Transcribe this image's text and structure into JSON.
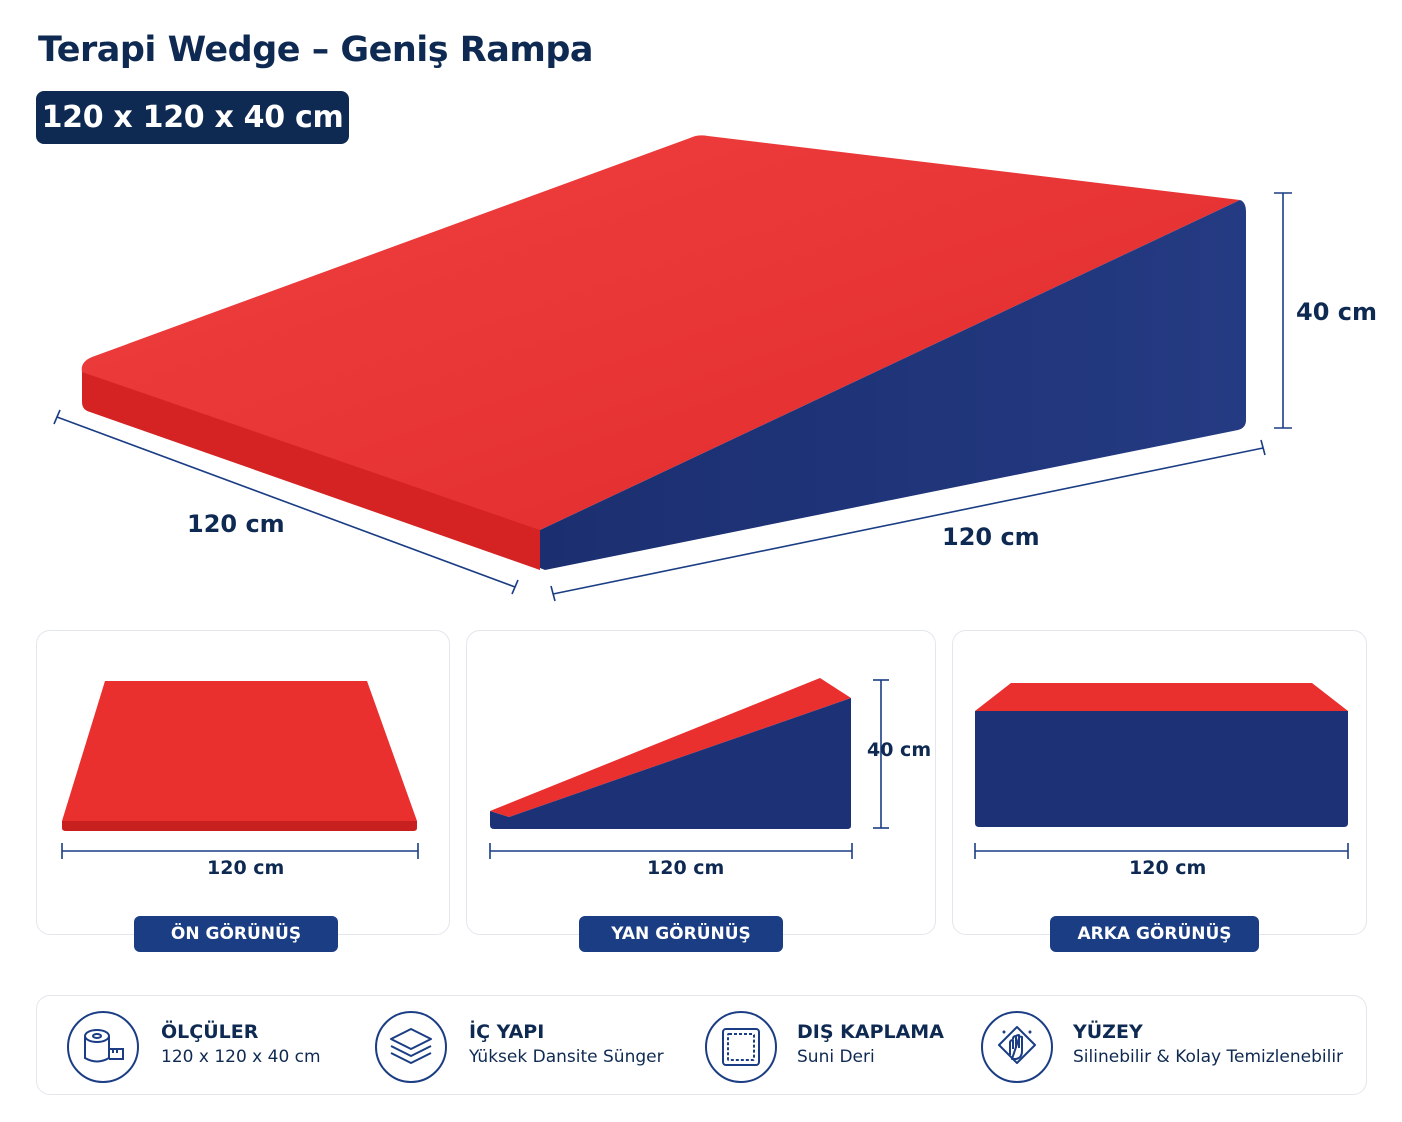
{
  "header": {
    "title": "Terapi Wedge – Geniş Rampa",
    "dimensions_badge": "120 x 120 x 40 cm"
  },
  "main_product": {
    "width_label": "120 cm",
    "length_label": "120 cm",
    "height_label": "40 cm",
    "colors": {
      "top": "#ea2f2f",
      "side": "#1d3276"
    }
  },
  "views": [
    {
      "label": "ÖN GÖRÜNÜŞ",
      "width_label": "120 cm"
    },
    {
      "label": "YAN GÖRÜNÜŞ",
      "width_label": "120 cm",
      "height_label": "40 cm"
    },
    {
      "label": "ARKA GÖRÜNÜŞ",
      "width_label": "120 cm"
    }
  ],
  "features": [
    {
      "icon": "measuring-tape-icon",
      "title": "ÖLÇÜLER",
      "text": "120 x 120 x 40 cm"
    },
    {
      "icon": "layers-icon",
      "title": "İÇ YAPI",
      "text": "Yüksek Dansite Sünger"
    },
    {
      "icon": "fabric-icon",
      "title": "DIŞ KAPLAMA",
      "text": "Suni Deri"
    },
    {
      "icon": "cleaning-hand-icon",
      "title": "YÜZEY",
      "text": "Silinebilir & Kolay Temizlenebilir"
    }
  ]
}
